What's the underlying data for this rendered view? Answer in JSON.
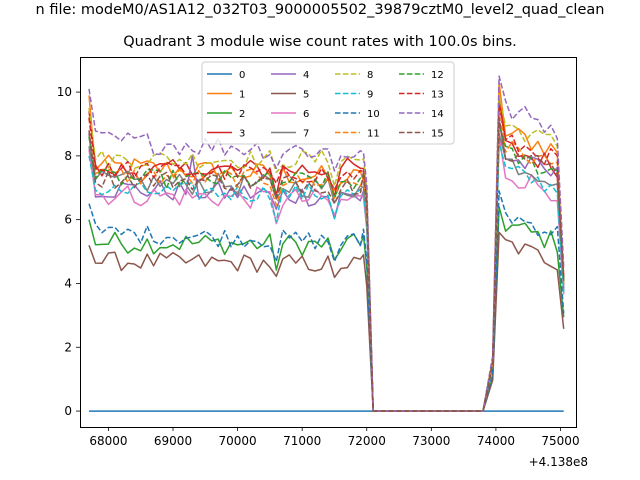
{
  "suptitle": "n file: modeM0/AS1A12_032T03_9000005502_39879cztM0_level2_quad_clean",
  "chart_data": {
    "type": "line",
    "title": "Quadrant 3 module wise count rates with 100.0s bins.",
    "xlabel": "",
    "ylabel": "",
    "x_offset_label": "+4.138e8",
    "xlim": [
      67560,
      75240
    ],
    "ylim": [
      -0.5,
      11.1
    ],
    "x_ticks": [
      68000,
      69000,
      70000,
      71000,
      72000,
      73000,
      74000,
      75000
    ],
    "y_ticks": [
      0,
      2,
      4,
      6,
      8,
      10
    ],
    "grid": false,
    "legend": {
      "placement": "top-center",
      "columns": 4
    },
    "segments": [
      {
        "x_start": 67700,
        "x_end": 71900,
        "step": 100
      },
      {
        "x_start": 71950,
        "x_end": 72000,
        "step": 100
      },
      {
        "x_start": 72100,
        "x_end": 73800,
        "step": 100
      },
      {
        "x_start": 73950,
        "x_end": 75050,
        "step": 100
      }
    ],
    "series": [
      {
        "name": "0",
        "color": "#1f77b4",
        "dash": "solid",
        "gap_level": 0,
        "a": 0.0,
        "b": 0.0,
        "post": 0.0,
        "spread": 0.0,
        "peak": 0.0,
        "dip": 0.0
      },
      {
        "name": "1",
        "color": "#ff7f0e",
        "dash": "solid",
        "gap_level": 0,
        "a": 7.7,
        "b": 7.3,
        "post": 8.9,
        "spread": 0.35,
        "peak": 10.3,
        "dip": 6.6
      },
      {
        "name": "2",
        "color": "#2ca02c",
        "dash": "solid",
        "gap_level": 0,
        "a": 5.3,
        "b": 5.2,
        "post": 6.0,
        "spread": 0.35,
        "peak": 6.4,
        "dip": 4.9
      },
      {
        "name": "3",
        "color": "#d62728",
        "dash": "solid",
        "gap_level": 0,
        "a": 7.5,
        "b": 7.6,
        "post": 8.4,
        "spread": 0.35,
        "peak": 9.8,
        "dip": 7.0
      },
      {
        "name": "4",
        "color": "#9467bd",
        "dash": "solid",
        "gap_level": 0,
        "a": 7.0,
        "b": 6.7,
        "post": 8.1,
        "spread": 0.35,
        "peak": 9.1,
        "dip": 6.3
      },
      {
        "name": "5",
        "color": "#8c564b",
        "dash": "solid",
        "gap_level": 0,
        "a": 4.7,
        "b": 4.6,
        "post": 5.4,
        "spread": 0.3,
        "peak": 5.6,
        "dip": 4.3
      },
      {
        "name": "6",
        "color": "#e377c2",
        "dash": "solid",
        "gap_level": 0,
        "a": 6.8,
        "b": 6.6,
        "post": 7.6,
        "spread": 0.35,
        "peak": 8.6,
        "dip": 6.1
      },
      {
        "name": "7",
        "color": "#7f7f7f",
        "dash": "solid",
        "gap_level": 0,
        "a": 7.2,
        "b": 7.0,
        "post": 8.0,
        "spread": 0.35,
        "peak": 8.7,
        "dip": 6.4
      },
      {
        "name": "8",
        "color": "#bcbd22",
        "dash": "dashed",
        "gap_level": 0,
        "a": 7.9,
        "b": 7.9,
        "post": 9.1,
        "spread": 0.3,
        "peak": 9.9,
        "dip": 7.3
      },
      {
        "name": "9",
        "color": "#17becf",
        "dash": "dashed",
        "gap_level": 0,
        "a": 6.9,
        "b": 6.8,
        "post": 7.7,
        "spread": 0.3,
        "peak": 8.4,
        "dip": 6.2
      },
      {
        "name": "10",
        "color": "#1f77b4",
        "dash": "dashed",
        "gap_level": 0,
        "a": 5.6,
        "b": 5.3,
        "post": 6.3,
        "spread": 0.3,
        "peak": 6.9,
        "dip": 5.1
      },
      {
        "name": "11",
        "color": "#ff7f0e",
        "dash": "dashed",
        "gap_level": 0,
        "a": 7.4,
        "b": 7.2,
        "post": 8.4,
        "spread": 0.3,
        "peak": 9.6,
        "dip": 6.7
      },
      {
        "name": "12",
        "color": "#2ca02c",
        "dash": "dashed",
        "gap_level": 0,
        "a": 7.3,
        "b": 7.2,
        "post": 8.2,
        "spread": 0.3,
        "peak": 9.0,
        "dip": 6.8
      },
      {
        "name": "13",
        "color": "#d62728",
        "dash": "dashed",
        "gap_level": 0,
        "a": 7.6,
        "b": 7.4,
        "post": 8.6,
        "spread": 0.3,
        "peak": 9.6,
        "dip": 6.9
      },
      {
        "name": "14",
        "color": "#9467bd",
        "dash": "dashed",
        "gap_level": 0,
        "a": 8.5,
        "b": 8.1,
        "post": 9.6,
        "spread": 0.35,
        "peak": 10.5,
        "dip": 7.5
      },
      {
        "name": "15",
        "color": "#8c564b",
        "dash": "dashed",
        "gap_level": 0,
        "a": 7.3,
        "b": 7.1,
        "post": 8.3,
        "spread": 0.3,
        "peak": 9.2,
        "dip": 6.9
      }
    ]
  }
}
